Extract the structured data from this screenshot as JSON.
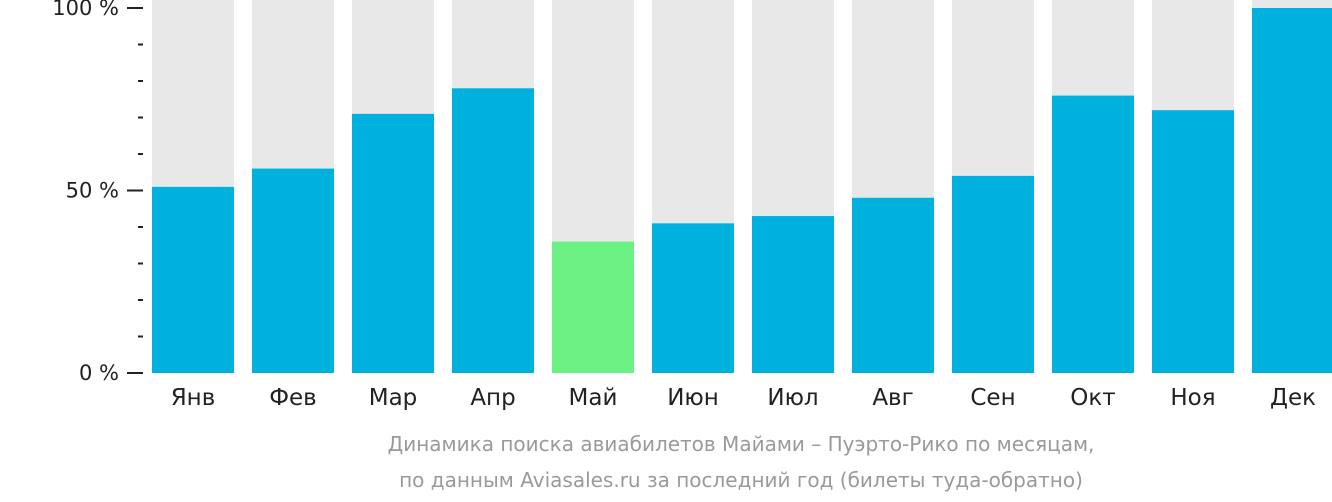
{
  "chart_data": {
    "type": "bar",
    "categories": [
      "Янв",
      "Фев",
      "Мар",
      "Апр",
      "Май",
      "Июн",
      "Июл",
      "Авг",
      "Сен",
      "Окт",
      "Ноя",
      "Дек"
    ],
    "values": [
      51,
      56,
      71,
      78,
      36,
      41,
      43,
      48,
      54,
      76,
      72,
      100
    ],
    "highlight_index": 4,
    "ylim": [
      0,
      100
    ],
    "y_ticks": [
      {
        "value": 100,
        "label": "100 %"
      },
      {
        "value": 50,
        "label": "50 %"
      },
      {
        "value": 0,
        "label": "0 %"
      }
    ],
    "y_minor_tick_step": 10,
    "grid": false,
    "colors": {
      "bar": "#00b0dd",
      "highlight": "#6cf185",
      "background_bar": "#e8e8e8",
      "axis": "#222222"
    }
  },
  "caption": {
    "line1": "Динамика поиска авиабилетов Майами – Пуэрто-Рико по месяцам,",
    "line2": "по данным Aviasales.ru за последний год (билеты туда-обратно)"
  }
}
